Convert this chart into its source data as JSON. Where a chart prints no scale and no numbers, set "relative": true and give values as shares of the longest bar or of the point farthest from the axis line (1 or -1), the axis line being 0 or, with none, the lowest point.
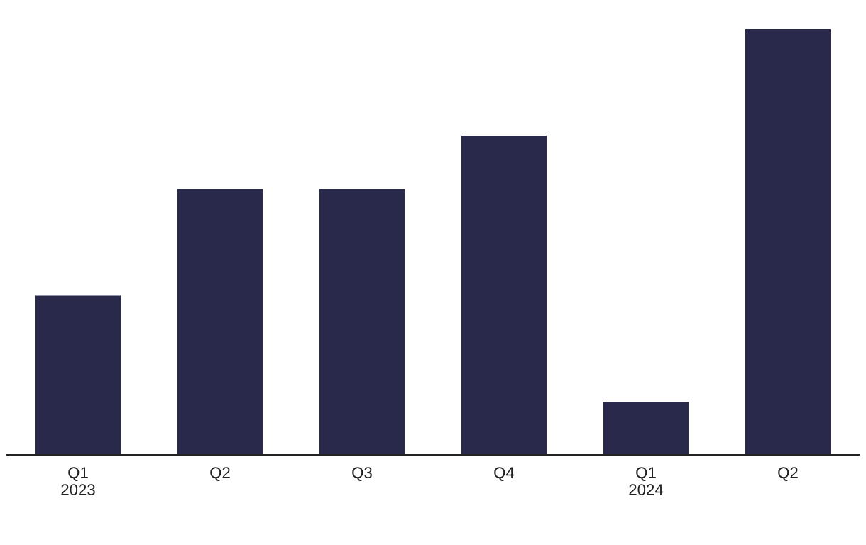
{
  "chart_data": {
    "type": "bar",
    "relative": true,
    "categories": [
      "Q1\n2023",
      "Q2",
      "Q3",
      "Q4",
      "Q1\n2024",
      "Q2"
    ],
    "values": [
      0.374,
      0.624,
      0.624,
      0.75,
      0.124,
      1
    ],
    "color": "#29294b",
    "grid": false,
    "legend": false
  }
}
